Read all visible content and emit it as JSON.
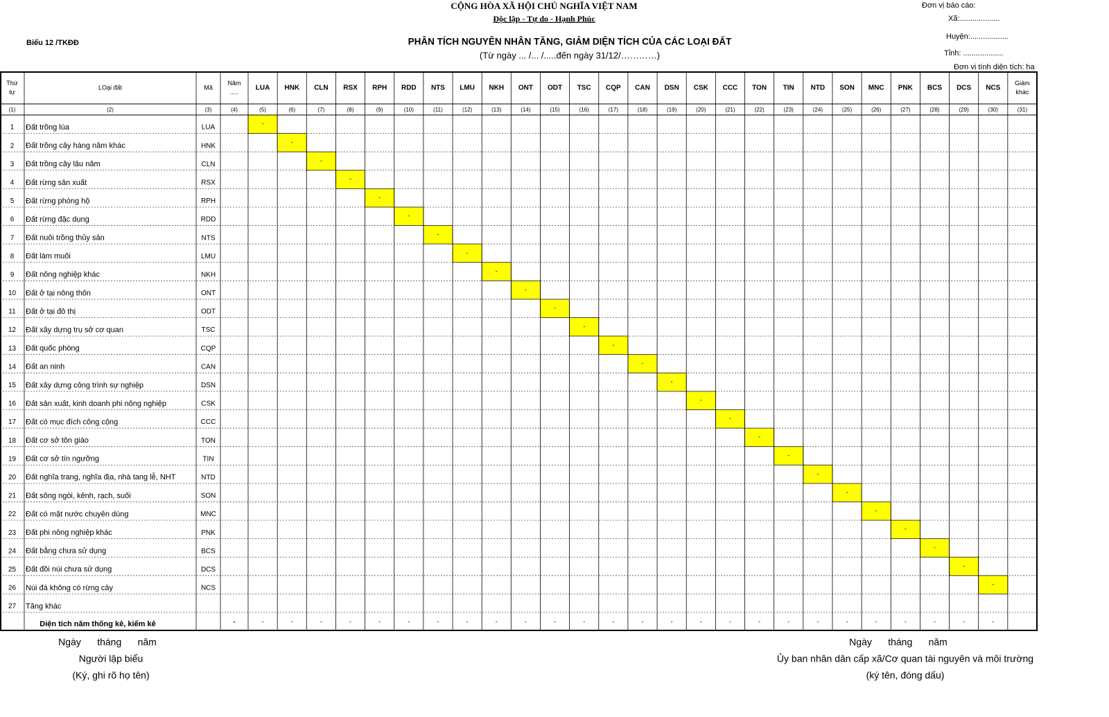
{
  "header": {
    "nation": "CỘNG HÒA XÃ HỘI CHỦ NGHĨA VIỆT NAM",
    "motto": "Độc lập - Tự do - Hạnh Phúc",
    "form": "Biểu 12 /TKĐĐ",
    "title": "PHÂN TÍCH NGUYÊN NHÂN TĂNG, GIẢM DIỆN TÍCH CỦA CÁC LOẠI ĐẤT",
    "period": "(Từ ngày ... /... /.....đến ngày 31/12/…………)",
    "unit_report": "Đơn vị báo cáo:",
    "commune": "Xã:...................",
    "district": "Huyện:..................",
    "province": "Tỉnh: ...................",
    "area_unit": "Đơn vị tính diện tích: ha"
  },
  "columns": {
    "labels": [
      [
        "Thứ",
        "tự"
      ],
      [
        "LOại đất"
      ],
      [
        "Mã"
      ],
      [
        "Năm",
        "....."
      ],
      [
        "LUA"
      ],
      [
        "HNK"
      ],
      [
        "CLN"
      ],
      [
        "RSX"
      ],
      [
        "RPH"
      ],
      [
        "RDD"
      ],
      [
        "NTS"
      ],
      [
        "LMU"
      ],
      [
        "NKH"
      ],
      [
        "ONT"
      ],
      [
        "ODT"
      ],
      [
        "TSC"
      ],
      [
        "CQP"
      ],
      [
        "CAN"
      ],
      [
        "DSN"
      ],
      [
        "CSK"
      ],
      [
        "CCC"
      ],
      [
        "TON"
      ],
      [
        "TIN"
      ],
      [
        "NTD"
      ],
      [
        "SON"
      ],
      [
        "MNC"
      ],
      [
        "PNK"
      ],
      [
        "BCS"
      ],
      [
        "DCS"
      ],
      [
        "NCS"
      ],
      [
        "Giảm",
        "khác"
      ]
    ],
    "numbers": [
      "(1)",
      "(2)",
      "(3)",
      "(4)",
      "(5)",
      "(6)",
      "(7)",
      "(8)",
      "(9)",
      "(10)",
      "(11)",
      "(12)",
      "(13)",
      "(14)",
      "(15)",
      "(16)",
      "(17)",
      "(18)",
      "(19)",
      "(20)",
      "(21)",
      "(22)",
      "(23)",
      "(24)",
      "(25)",
      "(26)",
      "(27)",
      "(28)",
      "(29)",
      "(30)",
      "(31)"
    ]
  },
  "rows": [
    {
      "no": 1,
      "name": "Đất trồng lúa",
      "code": "LUA",
      "mark": "-"
    },
    {
      "no": 2,
      "name": "Đất trồng cây hàng năm khác",
      "code": "HNK",
      "mark": "-"
    },
    {
      "no": 3,
      "name": "Đất trồng cây lâu năm",
      "code": "CLN",
      "mark": "-"
    },
    {
      "no": 4,
      "name": "Đất rừng sản xuất",
      "code": "RSX",
      "mark": "-"
    },
    {
      "no": 5,
      "name": "Đất rừng phòng hộ",
      "code": "RPH",
      "mark": "-"
    },
    {
      "no": 6,
      "name": "Đất rừng đặc dụng",
      "code": "RDD",
      "mark": "-"
    },
    {
      "no": 7,
      "name": "Đất nuôi trồng thủy sản",
      "code": "NTS",
      "mark": "-"
    },
    {
      "no": 8,
      "name": "Đất làm muối",
      "code": "LMU",
      "mark": "-"
    },
    {
      "no": 9,
      "name": "Đất nông nghiệp khác",
      "code": "NKH",
      "mark": "-"
    },
    {
      "no": 10,
      "name": "Đất ở tại nông thôn",
      "code": "ONT",
      "mark": "-"
    },
    {
      "no": 11,
      "name": "Đất ở tại đô thị",
      "code": "ODT",
      "mark": "-"
    },
    {
      "no": 12,
      "name": "Đất xây dựng trụ sở cơ quan",
      "code": "TSC",
      "mark": "-"
    },
    {
      "no": 13,
      "name": "Đất quốc phòng",
      "code": "CQP",
      "mark": "-"
    },
    {
      "no": 14,
      "name": "Đất an ninh",
      "code": "CAN",
      "mark": "-"
    },
    {
      "no": 15,
      "name": "Đất xây dựng công trình sự nghiệp",
      "code": "DSN",
      "mark": "-"
    },
    {
      "no": 16,
      "name": "Đất sản xuất, kinh doanh phi nông nghiệp",
      "code": "CSK",
      "mark": "-"
    },
    {
      "no": 17,
      "name": "Đất có mục đích công cộng",
      "code": "CCC",
      "mark": "-"
    },
    {
      "no": 18,
      "name": "Đất cơ sở tôn giáo",
      "code": "TON",
      "mark": "-"
    },
    {
      "no": 19,
      "name": "Đất cơ sở tín ngưỡng",
      "code": "TIN",
      "mark": "-"
    },
    {
      "no": 20,
      "name": "Đất nghĩa trang, nghĩa địa, nhà tang lễ, NHT",
      "code": "NTD",
      "mark": "-"
    },
    {
      "no": 21,
      "name": "Đất sông ngòi, kênh, rạch, suối",
      "code": "SON",
      "mark": "-"
    },
    {
      "no": 22,
      "name": "Đất có mặt nước chuyên dùng",
      "code": "MNC",
      "mark": "-"
    },
    {
      "no": 23,
      "name": "Đất phi nông nghiệp khác",
      "code": "PNK",
      "mark": "-"
    },
    {
      "no": 24,
      "name": "Đất bằng chưa sử dụng",
      "code": "BCS",
      "mark": "-"
    },
    {
      "no": 25,
      "name": "Đất đồi núi chưa sử dụng",
      "code": "DCS",
      "mark": "-"
    },
    {
      "no": 26,
      "name": "Núi đá không có rừng cây",
      "code": "NCS",
      "mark": "-"
    },
    {
      "no": 27,
      "name": "Tăng khác"
    }
  ],
  "total": {
    "label": "Diện tích năm thống kê, kiểm kê",
    "values": [
      "-",
      "-",
      "-",
      "-",
      "-",
      "-",
      "-",
      "-",
      "-",
      "-",
      "-",
      "-",
      "-",
      "-",
      "-",
      "-",
      "-",
      "-",
      "-",
      "-",
      "-",
      "-",
      "-",
      "-",
      "-",
      "-",
      "-"
    ]
  },
  "footer": {
    "left": {
      "date": "Ngày      tháng      năm",
      "role": "Người lập biểu",
      "sign": "(Ký, ghi rõ họ tên)"
    },
    "right": {
      "date": "Ngày      tháng      năm",
      "role": "Ủy ban nhân dân cấp xã/Cơ quan tài nguyên và môi trường",
      "sign": "(ký tên, đóng dấu)"
    }
  }
}
